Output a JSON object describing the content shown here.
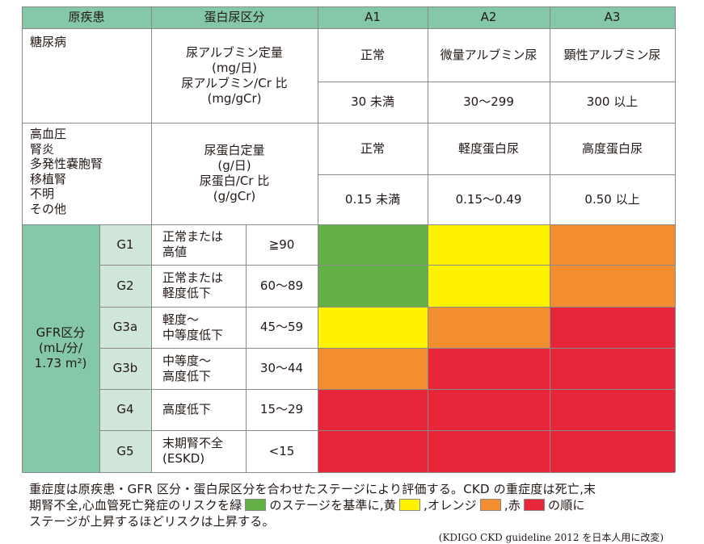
{
  "header": {
    "col1": "原疾患",
    "col2": "蛋白尿区分",
    "a1": "A1",
    "a2": "A2",
    "a3": "A3"
  },
  "diabetes": {
    "disease": "糖尿病",
    "measure": [
      "尿アルブミン定量",
      "(mg/日)",
      "尿アルブミン/Cr 比",
      "(mg/gCr)"
    ],
    "a1_label": "正常",
    "a2_label": "微量アルブミン尿",
    "a3_label": "顕性アルブミン尿",
    "a1_range": "30 未満",
    "a2_range": "30〜299",
    "a3_range": "300 以上"
  },
  "other": {
    "diseases": [
      "高血圧",
      "腎炎",
      "多発性嚢胞腎",
      "移植腎",
      "不明",
      "その他"
    ],
    "measure": [
      "尿蛋白定量",
      "(g/日)",
      "尿蛋白/Cr 比",
      "(g/gCr)"
    ],
    "a1_label": "正常",
    "a2_label": "軽度蛋白尿",
    "a3_label": "高度蛋白尿",
    "a1_range": "0.15 未満",
    "a2_range": "0.15〜0.49",
    "a3_range": "0.50 以上"
  },
  "gfr": {
    "label": [
      "GFR区分",
      "(mL/分/",
      "1.73 m²)"
    ],
    "rows": [
      {
        "stage": "G1",
        "desc": "正常または\n高値",
        "range": "≧90",
        "colors": [
          "green",
          "yellow",
          "orange"
        ]
      },
      {
        "stage": "G2",
        "desc": "正常または\n軽度低下",
        "range": "60〜89",
        "colors": [
          "green",
          "yellow",
          "orange"
        ]
      },
      {
        "stage": "G3a",
        "desc": "軽度〜\n中等度低下",
        "range": "45〜59",
        "colors": [
          "yellow",
          "orange",
          "red"
        ]
      },
      {
        "stage": "G3b",
        "desc": "中等度〜\n高度低下",
        "range": "30〜44",
        "colors": [
          "orange",
          "red",
          "red"
        ]
      },
      {
        "stage": "G4",
        "desc": "高度低下",
        "range": "15〜29",
        "colors": [
          "red",
          "red",
          "red"
        ]
      },
      {
        "stage": "G5",
        "desc": "末期腎不全\n(ESKD)",
        "range": "<15",
        "colors": [
          "red",
          "red",
          "red"
        ]
      }
    ]
  },
  "note": {
    "line1": "重症度は原疾患・GFR 区分・蛋白尿区分を合わせたステージにより評価する。CKD の重症度は死亡,末",
    "line2a": "期腎不全,心血管死亡発症のリスクを緑",
    "line2b": "のステージを基準に,黄",
    "line2c": ",オレンジ",
    "line2d": ",赤",
    "line2e": "の順に",
    "line3": "ステージが上昇するほどリスクは上昇する。"
  },
  "source": "(KDIGO CKD guideline 2012 を日本人用に改変)",
  "colors": {
    "green": "#63b045",
    "yellow": "#fff200",
    "orange": "#f28e2f",
    "red": "#e8263a",
    "header": "#84c8a8",
    "label": "#cfe6d8"
  }
}
